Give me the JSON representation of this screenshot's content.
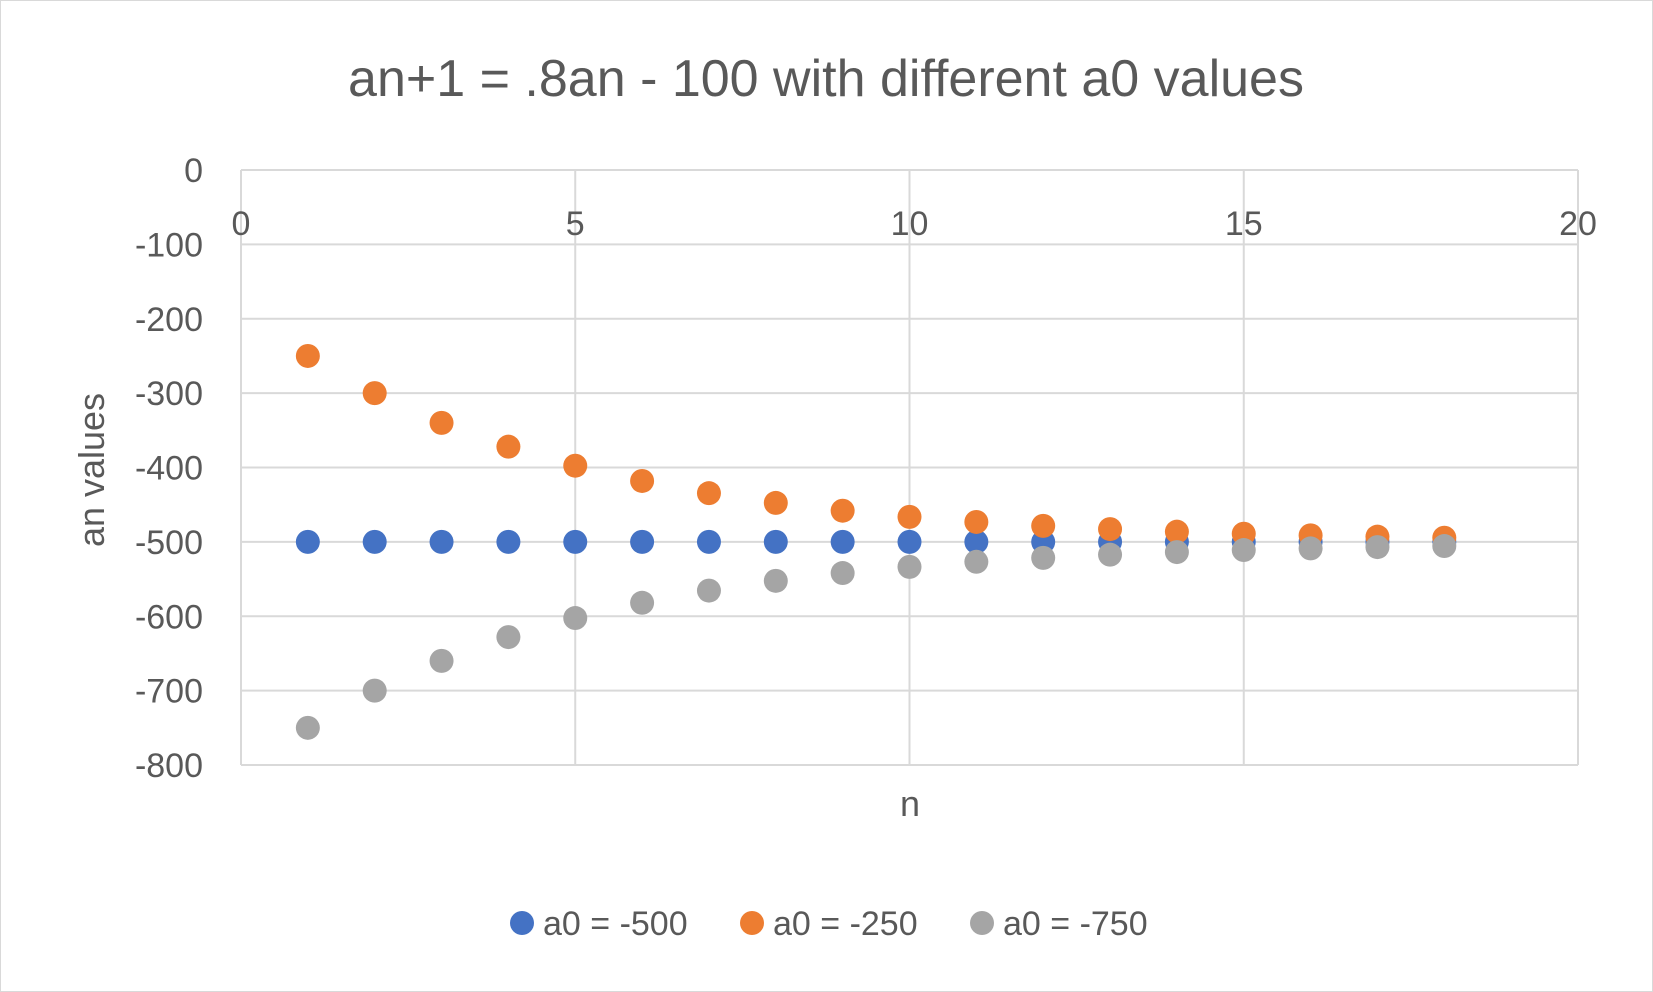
{
  "chart_data": {
    "type": "scatter",
    "title": "an+1 = .8an - 100 with different a0 values",
    "xlabel": "n",
    "ylabel": "an values",
    "xlim": [
      0,
      20
    ],
    "ylim": [
      -800,
      0
    ],
    "xticks": [
      0,
      5,
      10,
      15,
      20
    ],
    "yticks": [
      0,
      -100,
      -200,
      -300,
      -400,
      -500,
      -600,
      -700,
      -800
    ],
    "x_tick_labels": [
      "0",
      "5",
      "10",
      "15",
      "20"
    ],
    "y_tick_labels": [
      "0",
      "-100",
      "-200",
      "-300",
      "-400",
      "-500",
      "-600",
      "-700",
      "-800"
    ],
    "grid": true,
    "legend_position": "bottom",
    "x": [
      1,
      2,
      3,
      4,
      5,
      6,
      7,
      8,
      9,
      10,
      11,
      12,
      13,
      14,
      15,
      16,
      17,
      18
    ],
    "series": [
      {
        "name": "a0 = -500",
        "color": "#4472c4",
        "values": [
          -500,
          -500,
          -500,
          -500,
          -500,
          -500,
          -500,
          -500,
          -500,
          -500,
          -500,
          -500,
          -500,
          -500,
          -500,
          -500,
          -500,
          -500
        ]
      },
      {
        "name": "a0 = -250",
        "color": "#ed7d31",
        "values": [
          -250,
          -300,
          -340,
          -372,
          -397.6,
          -418.1,
          -434.5,
          -447.6,
          -458.1,
          -466.4,
          -473.2,
          -478.5,
          -482.8,
          -486.3,
          -489.0,
          -491.2,
          -493.0,
          -494.4
        ]
      },
      {
        "name": "a0 = -750",
        "color": "#a5a5a5",
        "values": [
          -750,
          -700,
          -660,
          -628,
          -602.4,
          -581.9,
          -565.5,
          -552.4,
          -541.9,
          -533.6,
          -526.8,
          -521.5,
          -517.2,
          -513.7,
          -511.0,
          -508.8,
          -507.0,
          -505.6
        ]
      }
    ]
  }
}
